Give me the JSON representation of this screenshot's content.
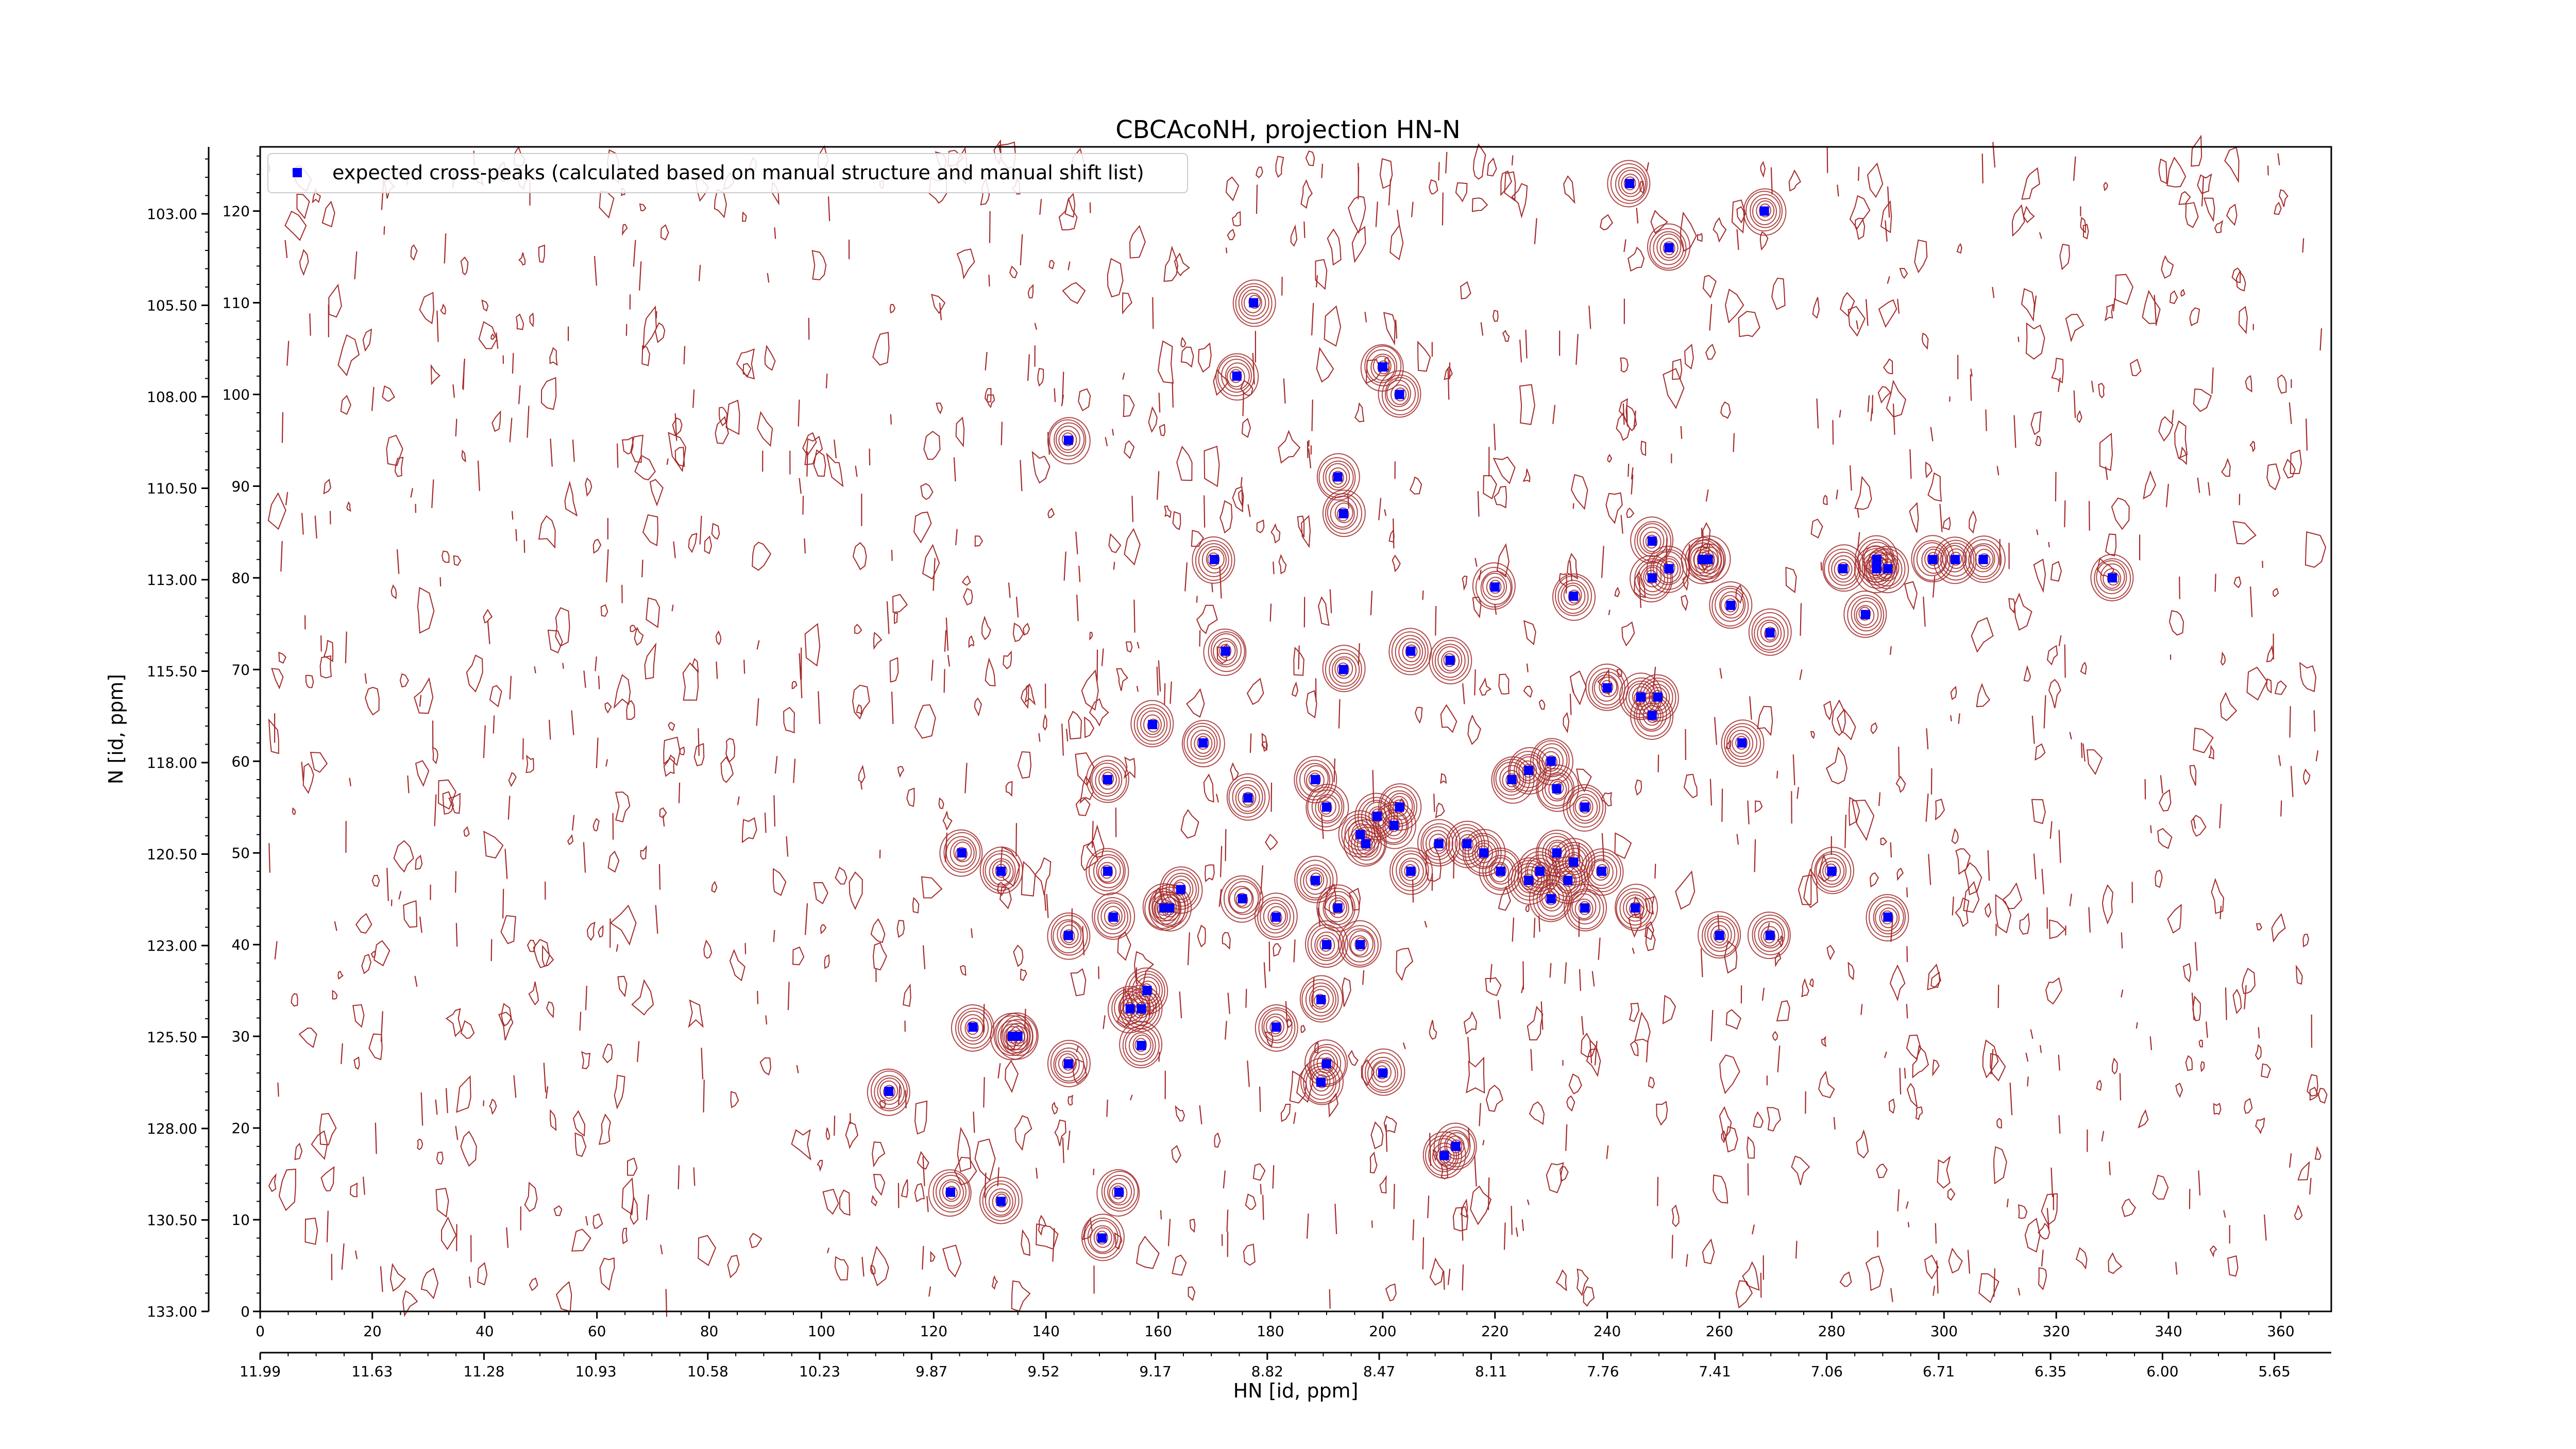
{
  "chart_data": {
    "type": "scatter",
    "title": "CBCAcoNH, projection HN-N",
    "xlabel": "HN [id, ppm]",
    "ylabel": "N [id, ppm]",
    "x_index_range": [
      0,
      369
    ],
    "y_index_range": [
      0,
      127
    ],
    "x_index_ticks": [
      "0",
      "20",
      "40",
      "60",
      "80",
      "100",
      "120",
      "140",
      "160",
      "180",
      "200",
      "220",
      "240",
      "260",
      "280",
      "300",
      "320",
      "340",
      "360"
    ],
    "x_ppm_ticks": [
      "11.99",
      "11.63",
      "11.28",
      "10.93",
      "10.58",
      "10.23",
      "9.87",
      "9.52",
      "9.17",
      "8.82",
      "8.47",
      "8.11",
      "7.76",
      "7.41",
      "7.06",
      "6.71",
      "6.35",
      "6.00",
      "5.65"
    ],
    "y_index_ticks": [
      "0",
      "10",
      "20",
      "30",
      "40",
      "50",
      "60",
      "70",
      "80",
      "90",
      "100",
      "110",
      "120"
    ],
    "y_ppm_ticks": [
      "133.00",
      "130.50",
      "128.00",
      "125.50",
      "123.00",
      "120.50",
      "118.00",
      "115.50",
      "113.00",
      "110.50",
      "108.00",
      "105.50",
      "103.00"
    ],
    "legend": {
      "position": "top-left",
      "entries": [
        "expected cross-peaks (calculated based on manual structure and manual shift list)"
      ]
    },
    "colors": {
      "contour": "#a52a2a",
      "marker": "#0000ff"
    },
    "grid": false,
    "series": [
      {
        "name": "expected cross-peaks (calculated based on manual structure and manual shift list)",
        "x": [
          244,
          268,
          251,
          177,
          174,
          200,
          203,
          144,
          192,
          193,
          170,
          172,
          193,
          205,
          212,
          220,
          234,
          248,
          248,
          251,
          258,
          257,
          262,
          269,
          290,
          288,
          282,
          298,
          302,
          307,
          288,
          286,
          330,
          246,
          240,
          248,
          249,
          264,
          168,
          159,
          151,
          176,
          203,
          236,
          231,
          230,
          226,
          223,
          218,
          215,
          210,
          202,
          199,
          196,
          190,
          188,
          197,
          188,
          205,
          233,
          239,
          231,
          234,
          221,
          228,
          226,
          230,
          236,
          245,
          260,
          269,
          280,
          290,
          125,
          132,
          151,
          152,
          162,
          164,
          161,
          175,
          192,
          181,
          190,
          196,
          144,
          155,
          189,
          157,
          158,
          134,
          157,
          211,
          213,
          200,
          144,
          189,
          190,
          181,
          127,
          135,
          150,
          153,
          123,
          132,
          112
        ],
        "y": [
          123,
          120,
          116,
          110,
          102,
          103,
          100,
          95,
          91,
          87,
          82,
          72,
          70,
          72,
          71,
          79,
          78,
          84,
          80,
          81,
          82,
          82,
          77,
          74,
          81,
          82,
          81,
          82,
          82,
          82,
          81,
          76,
          80,
          67,
          68,
          65,
          67,
          62,
          62,
          64,
          58,
          56,
          55,
          55,
          57,
          60,
          59,
          58,
          50,
          51,
          51,
          53,
          54,
          52,
          55,
          58,
          51,
          47,
          48,
          47,
          48,
          50,
          49,
          48,
          48,
          47,
          45,
          44,
          44,
          41,
          41,
          48,
          43,
          50,
          48,
          48,
          43,
          44,
          46,
          44,
          45,
          44,
          43,
          40,
          40,
          41,
          33,
          34,
          33,
          35,
          30,
          29,
          17,
          18,
          26,
          27,
          25,
          27,
          31,
          31,
          30,
          8,
          13,
          13,
          12,
          24
        ]
      }
    ]
  }
}
